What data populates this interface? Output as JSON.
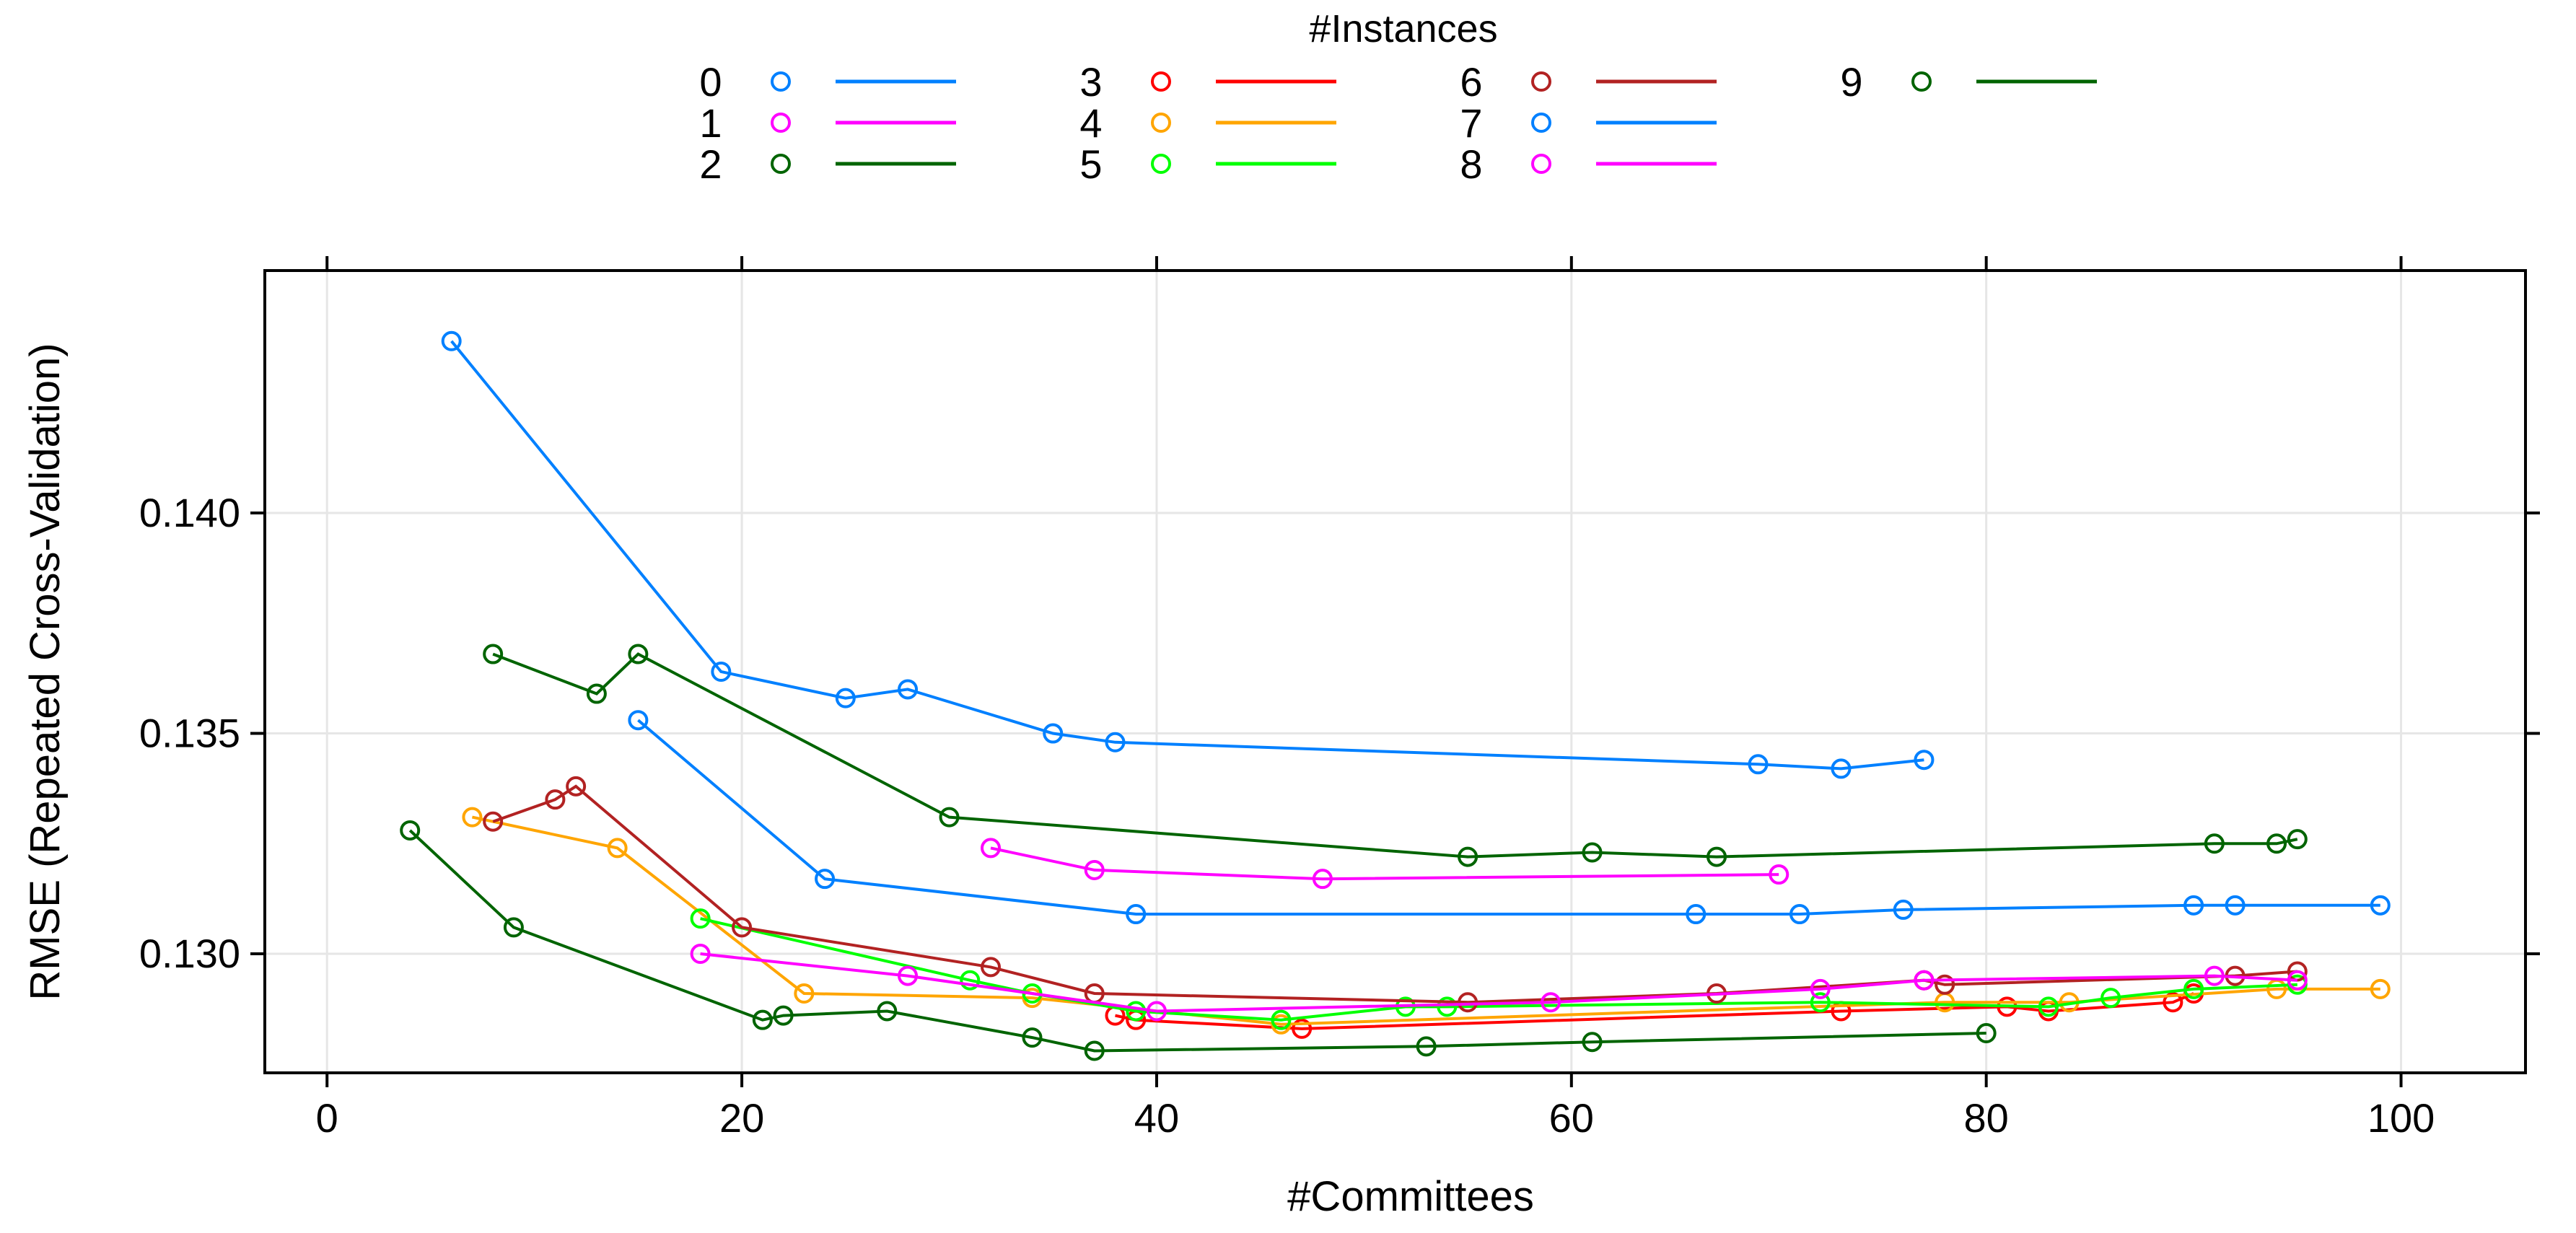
{
  "chart_data": {
    "type": "line",
    "title": "",
    "legend_title": "#Instances",
    "xlabel": "#Committees",
    "ylabel": "RMSE (Repeated Cross-Validation)",
    "xlim": [
      -3,
      106
    ],
    "ylim": [
      0.1273,
      0.1455
    ],
    "x_ticks": [
      0,
      20,
      40,
      60,
      80,
      100
    ],
    "x_tick_labels": [
      "0",
      "20",
      "40",
      "60",
      "80",
      "100"
    ],
    "y_ticks": [
      0.13,
      0.135,
      0.14
    ],
    "y_tick_labels": [
      "0.130",
      "0.135",
      "0.140"
    ],
    "grid": true,
    "legend_position": "top",
    "series": [
      {
        "name": "0",
        "color": "#0080ff",
        "x": [
          6,
          19,
          25,
          28,
          35,
          38,
          69,
          73,
          77
        ],
        "y": [
          0.1439,
          0.1364,
          0.1358,
          0.136,
          0.135,
          0.1348,
          0.1343,
          0.1342,
          0.1344
        ]
      },
      {
        "name": "1",
        "color": "#ff00ff",
        "x": [
          32,
          37,
          48,
          70
        ],
        "y": [
          0.1324,
          0.1319,
          0.1317,
          0.1318
        ]
      },
      {
        "name": "2",
        "color": "#006400",
        "x": [
          8,
          13,
          15,
          30,
          55,
          61,
          67,
          91,
          94,
          95
        ],
        "y": [
          0.1368,
          0.1359,
          0.1368,
          0.1331,
          0.1322,
          0.1323,
          0.1322,
          0.1325,
          0.1325,
          0.1326
        ]
      },
      {
        "name": "3",
        "color": "#ff0000",
        "x": [
          38,
          39,
          47,
          73,
          81,
          83,
          89,
          90
        ],
        "y": [
          0.1286,
          0.1285,
          0.1283,
          0.1287,
          0.1288,
          0.1287,
          0.1289,
          0.1291
        ]
      },
      {
        "name": "4",
        "color": "#ffa500",
        "x": [
          7,
          14,
          23,
          34,
          46,
          78,
          84,
          94,
          99
        ],
        "y": [
          0.1331,
          0.1324,
          0.1291,
          0.129,
          0.1284,
          0.1289,
          0.1289,
          0.1292,
          0.1292
        ]
      },
      {
        "name": "5",
        "color": "#00ff00",
        "x": [
          18,
          31,
          34,
          39,
          46,
          52,
          54,
          72,
          83,
          86,
          90,
          95
        ],
        "y": [
          0.1308,
          0.1294,
          0.1291,
          0.1287,
          0.1285,
          0.1288,
          0.1288,
          0.1289,
          0.1288,
          0.129,
          0.1292,
          0.1293
        ]
      },
      {
        "name": "6",
        "color": "#b22222",
        "x": [
          8,
          11,
          12,
          20,
          32,
          37,
          55,
          67,
          77,
          78,
          92,
          95
        ],
        "y": [
          0.133,
          0.1335,
          0.1338,
          0.1306,
          0.1297,
          0.1291,
          0.1289,
          0.1291,
          0.1294,
          0.1293,
          0.1295,
          0.1296
        ]
      },
      {
        "name": "7",
        "color": "#0080ff",
        "x": [
          15,
          24,
          39,
          66,
          71,
          76,
          90,
          92,
          99
        ],
        "y": [
          0.1353,
          0.1317,
          0.1309,
          0.1309,
          0.1309,
          0.131,
          0.1311,
          0.1311,
          0.1311
        ]
      },
      {
        "name": "8",
        "color": "#ff00ff",
        "x": [
          18,
          28,
          40,
          59,
          72,
          77,
          91,
          95
        ],
        "y": [
          0.13,
          0.1295,
          0.1287,
          0.1289,
          0.1292,
          0.1294,
          0.1295,
          0.1294
        ]
      },
      {
        "name": "9",
        "color": "#006400",
        "x": [
          4,
          9,
          21,
          22,
          27,
          34,
          37,
          53,
          61,
          80
        ],
        "y": [
          0.1328,
          0.1306,
          0.1285,
          0.1286,
          0.1287,
          0.1281,
          0.1278,
          0.1279,
          0.128,
          0.1282
        ]
      }
    ]
  }
}
